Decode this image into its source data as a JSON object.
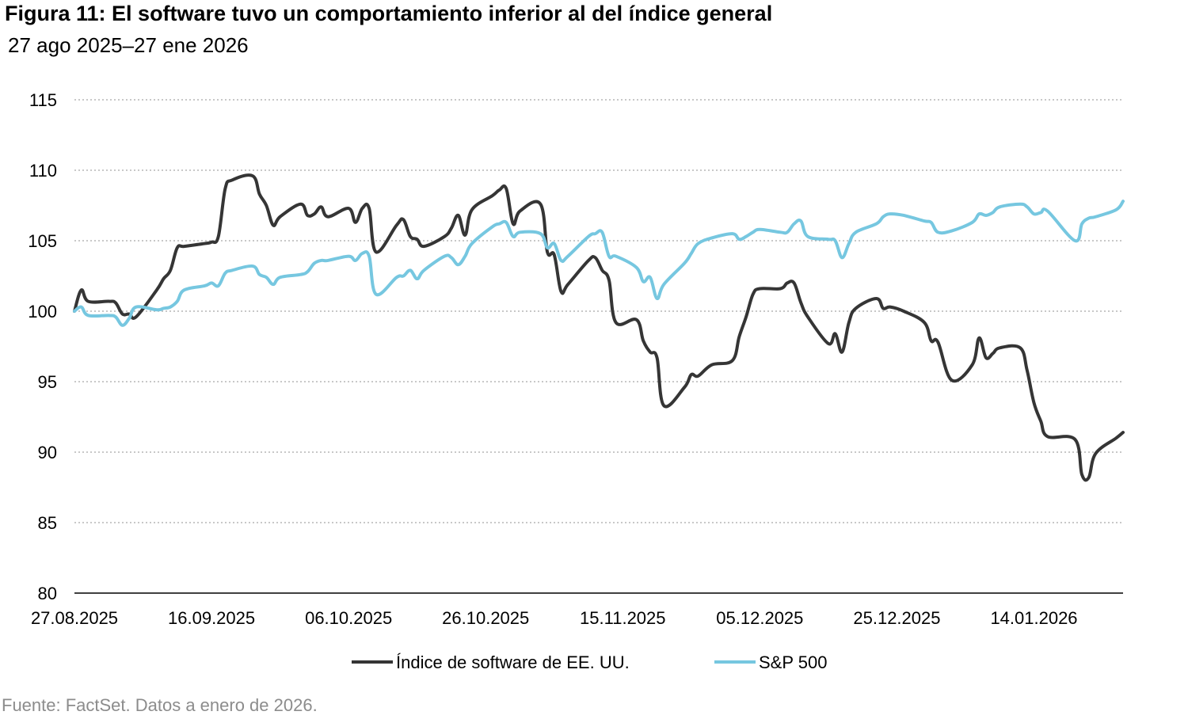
{
  "title": "Figura 11: El software tuvo un comportamiento inferior al del índice general",
  "subtitle": "27 ago 2025–27 ene 2026",
  "source": "Fuente: FactSet. Datos a enero de 2026.",
  "chart_data": {
    "type": "line",
    "title": "Figura 11: El software tuvo un comportamiento inferior al del índice general",
    "subtitle": "27 ago 2025–27 ene 2026",
    "xlabel": "",
    "ylabel": "",
    "xlim": [
      "2025-08-27",
      "2026-01-27"
    ],
    "ylim": [
      80,
      115
    ],
    "yticks": [
      80,
      85,
      90,
      95,
      100,
      105,
      110,
      115
    ],
    "y_tick_labels": [
      "80",
      "85",
      "90",
      "95",
      "100",
      "105",
      "110",
      "115"
    ],
    "x_tick_labels": [
      "27.08.2025",
      "16.09.2025",
      "06.10.2025",
      "26.10.2025",
      "15.11.2025",
      "05.12.2025",
      "25.12.2025",
      "14.01.2026"
    ],
    "x_tick_dates": [
      "2025-08-27",
      "2025-09-16",
      "2025-10-06",
      "2025-10-26",
      "2025-11-15",
      "2025-12-05",
      "2025-12-25",
      "2026-01-14"
    ],
    "grid": "horizontal dotted",
    "legend_position": "bottom-center",
    "series": [
      {
        "name": "Índice de software de EE. UU.",
        "color": "#353535",
        "points": [
          [
            "2025-08-27",
            100.0
          ],
          [
            "2025-08-28",
            101.5
          ],
          [
            "2025-08-29",
            100.7
          ],
          [
            "2025-09-01",
            100.7
          ],
          [
            "2025-09-02",
            100.6
          ],
          [
            "2025-09-03",
            99.8
          ],
          [
            "2025-09-04",
            99.8
          ],
          [
            "2025-09-05",
            99.6
          ],
          [
            "2025-09-08",
            101.5
          ],
          [
            "2025-09-09",
            102.3
          ],
          [
            "2025-09-10",
            102.9
          ],
          [
            "2025-09-11",
            104.5
          ],
          [
            "2025-09-12",
            104.6
          ],
          [
            "2025-09-15",
            104.8
          ],
          [
            "2025-09-16",
            104.9
          ],
          [
            "2025-09-17",
            105.3
          ],
          [
            "2025-09-18",
            108.7
          ],
          [
            "2025-09-19",
            109.3
          ],
          [
            "2025-09-22",
            109.6
          ],
          [
            "2025-09-23",
            108.3
          ],
          [
            "2025-09-24",
            107.5
          ],
          [
            "2025-09-25",
            106.1
          ],
          [
            "2025-09-26",
            106.7
          ],
          [
            "2025-09-29",
            107.6
          ],
          [
            "2025-09-30",
            106.8
          ],
          [
            "2025-10-01",
            106.9
          ],
          [
            "2025-10-02",
            107.4
          ],
          [
            "2025-10-03",
            106.7
          ],
          [
            "2025-10-06",
            107.3
          ],
          [
            "2025-10-07",
            106.3
          ],
          [
            "2025-10-08",
            107.3
          ],
          [
            "2025-10-09",
            107.3
          ],
          [
            "2025-10-10",
            104.2
          ],
          [
            "2025-10-13",
            106.1
          ],
          [
            "2025-10-14",
            106.5
          ],
          [
            "2025-10-15",
            105.3
          ],
          [
            "2025-10-16",
            105.1
          ],
          [
            "2025-10-17",
            104.6
          ],
          [
            "2025-10-20",
            105.3
          ],
          [
            "2025-10-21",
            105.9
          ],
          [
            "2025-10-22",
            106.8
          ],
          [
            "2025-10-23",
            105.4
          ],
          [
            "2025-10-24",
            107.2
          ],
          [
            "2025-10-27",
            108.2
          ],
          [
            "2025-10-28",
            108.6
          ],
          [
            "2025-10-29",
            108.7
          ],
          [
            "2025-10-30",
            106.2
          ],
          [
            "2025-10-31",
            107.1
          ],
          [
            "2025-11-03",
            107.6
          ],
          [
            "2025-11-04",
            104.2
          ],
          [
            "2025-11-05",
            104.0
          ],
          [
            "2025-11-06",
            101.4
          ],
          [
            "2025-11-07",
            101.9
          ],
          [
            "2025-11-10",
            103.6
          ],
          [
            "2025-11-11",
            103.8
          ],
          [
            "2025-11-12",
            102.9
          ],
          [
            "2025-11-13",
            102.2
          ],
          [
            "2025-11-14",
            99.2
          ],
          [
            "2025-11-17",
            99.4
          ],
          [
            "2025-11-18",
            97.9
          ],
          [
            "2025-11-19",
            97.1
          ],
          [
            "2025-11-20",
            96.7
          ],
          [
            "2025-11-21",
            93.3
          ],
          [
            "2025-11-24",
            94.6
          ],
          [
            "2025-11-25",
            95.5
          ],
          [
            "2025-11-26",
            95.4
          ],
          [
            "2025-11-28",
            96.2
          ],
          [
            "2025-12-01",
            96.5
          ],
          [
            "2025-12-02",
            98.2
          ],
          [
            "2025-12-03",
            99.6
          ],
          [
            "2025-12-04",
            101.2
          ],
          [
            "2025-12-05",
            101.6
          ],
          [
            "2025-12-08",
            101.6
          ],
          [
            "2025-12-09",
            102.0
          ],
          [
            "2025-12-10",
            102.0
          ],
          [
            "2025-12-11",
            100.6
          ],
          [
            "2025-12-12",
            99.6
          ],
          [
            "2025-12-15",
            97.7
          ],
          [
            "2025-12-16",
            98.4
          ],
          [
            "2025-12-17",
            97.1
          ],
          [
            "2025-12-18",
            99.2
          ],
          [
            "2025-12-19",
            100.2
          ],
          [
            "2025-12-22",
            100.9
          ],
          [
            "2025-12-23",
            100.2
          ],
          [
            "2025-12-24",
            100.3
          ],
          [
            "2025-12-26",
            100.0
          ],
          [
            "2025-12-29",
            99.2
          ],
          [
            "2025-12-30",
            97.9
          ],
          [
            "2025-12-31",
            97.8
          ],
          [
            "2026-01-02",
            95.1
          ],
          [
            "2026-01-05",
            96.2
          ],
          [
            "2026-01-06",
            98.1
          ],
          [
            "2026-01-07",
            96.7
          ],
          [
            "2026-01-08",
            97.0
          ],
          [
            "2026-01-09",
            97.4
          ],
          [
            "2026-01-12",
            97.4
          ],
          [
            "2026-01-13",
            95.8
          ],
          [
            "2026-01-14",
            93.5
          ],
          [
            "2026-01-15",
            92.2
          ],
          [
            "2026-01-16",
            91.1
          ],
          [
            "2026-01-20",
            90.9
          ],
          [
            "2026-01-21",
            88.4
          ],
          [
            "2026-01-22",
            88.2
          ],
          [
            "2026-01-23",
            89.9
          ],
          [
            "2026-01-26",
            91.0
          ],
          [
            "2026-01-27",
            91.4
          ]
        ]
      },
      {
        "name": "S&P 500",
        "color": "#76c7e0",
        "points": [
          [
            "2025-08-27",
            100.0
          ],
          [
            "2025-08-28",
            100.3
          ],
          [
            "2025-08-29",
            99.7
          ],
          [
            "2025-09-01",
            99.7
          ],
          [
            "2025-09-02",
            99.6
          ],
          [
            "2025-09-03",
            99.0
          ],
          [
            "2025-09-04",
            99.5
          ],
          [
            "2025-09-05",
            100.3
          ],
          [
            "2025-09-08",
            100.1
          ],
          [
            "2025-09-09",
            100.2
          ],
          [
            "2025-09-10",
            100.3
          ],
          [
            "2025-09-11",
            100.7
          ],
          [
            "2025-09-12",
            101.5
          ],
          [
            "2025-09-15",
            101.8
          ],
          [
            "2025-09-16",
            102.0
          ],
          [
            "2025-09-17",
            101.8
          ],
          [
            "2025-09-18",
            102.7
          ],
          [
            "2025-09-19",
            102.9
          ],
          [
            "2025-09-22",
            103.2
          ],
          [
            "2025-09-23",
            102.6
          ],
          [
            "2025-09-24",
            102.4
          ],
          [
            "2025-09-25",
            101.9
          ],
          [
            "2025-09-26",
            102.4
          ],
          [
            "2025-09-29",
            102.6
          ],
          [
            "2025-09-30",
            102.8
          ],
          [
            "2025-10-01",
            103.4
          ],
          [
            "2025-10-02",
            103.6
          ],
          [
            "2025-10-03",
            103.6
          ],
          [
            "2025-10-06",
            103.9
          ],
          [
            "2025-10-07",
            103.6
          ],
          [
            "2025-10-08",
            104.1
          ],
          [
            "2025-10-09",
            103.9
          ],
          [
            "2025-10-10",
            101.2
          ],
          [
            "2025-10-13",
            102.4
          ],
          [
            "2025-10-14",
            102.5
          ],
          [
            "2025-10-15",
            102.9
          ],
          [
            "2025-10-16",
            102.3
          ],
          [
            "2025-10-17",
            102.9
          ],
          [
            "2025-10-20",
            103.9
          ],
          [
            "2025-10-21",
            103.8
          ],
          [
            "2025-10-22",
            103.3
          ],
          [
            "2025-10-23",
            103.9
          ],
          [
            "2025-10-24",
            104.8
          ],
          [
            "2025-10-27",
            106.0
          ],
          [
            "2025-10-28",
            106.2
          ],
          [
            "2025-10-29",
            106.3
          ],
          [
            "2025-10-30",
            105.3
          ],
          [
            "2025-10-31",
            105.6
          ],
          [
            "2025-11-03",
            105.5
          ],
          [
            "2025-11-04",
            104.5
          ],
          [
            "2025-11-05",
            104.8
          ],
          [
            "2025-11-06",
            103.6
          ],
          [
            "2025-11-07",
            103.9
          ],
          [
            "2025-11-10",
            105.3
          ],
          [
            "2025-11-11",
            105.5
          ],
          [
            "2025-11-12",
            105.6
          ],
          [
            "2025-11-13",
            103.9
          ],
          [
            "2025-11-14",
            103.9
          ],
          [
            "2025-11-17",
            103.1
          ],
          [
            "2025-11-18",
            102.1
          ],
          [
            "2025-11-19",
            102.4
          ],
          [
            "2025-11-20",
            100.9
          ],
          [
            "2025-11-21",
            101.9
          ],
          [
            "2025-11-24",
            103.4
          ],
          [
            "2025-11-25",
            104.1
          ],
          [
            "2025-11-26",
            104.8
          ],
          [
            "2025-11-28",
            105.2
          ],
          [
            "2025-12-01",
            105.5
          ],
          [
            "2025-12-02",
            105.1
          ],
          [
            "2025-12-03",
            105.3
          ],
          [
            "2025-12-04",
            105.6
          ],
          [
            "2025-12-05",
            105.8
          ],
          [
            "2025-12-08",
            105.6
          ],
          [
            "2025-12-09",
            105.6
          ],
          [
            "2025-12-10",
            106.2
          ],
          [
            "2025-12-11",
            106.4
          ],
          [
            "2025-12-12",
            105.3
          ],
          [
            "2025-12-15",
            105.1
          ],
          [
            "2025-12-16",
            105.0
          ],
          [
            "2025-12-17",
            103.8
          ],
          [
            "2025-12-18",
            104.8
          ],
          [
            "2025-12-19",
            105.6
          ],
          [
            "2025-12-22",
            106.2
          ],
          [
            "2025-12-23",
            106.7
          ],
          [
            "2025-12-24",
            106.9
          ],
          [
            "2025-12-26",
            106.8
          ],
          [
            "2025-12-29",
            106.4
          ],
          [
            "2025-12-30",
            106.3
          ],
          [
            "2025-12-31",
            105.6
          ],
          [
            "2026-01-02",
            105.7
          ],
          [
            "2026-01-05",
            106.3
          ],
          [
            "2026-01-06",
            106.9
          ],
          [
            "2026-01-07",
            106.8
          ],
          [
            "2026-01-08",
            107.0
          ],
          [
            "2026-01-09",
            107.4
          ],
          [
            "2026-01-12",
            107.6
          ],
          [
            "2026-01-13",
            107.4
          ],
          [
            "2026-01-14",
            106.9
          ],
          [
            "2026-01-15",
            107.0
          ],
          [
            "2026-01-16",
            107.1
          ],
          [
            "2026-01-20",
            105.0
          ],
          [
            "2026-01-21",
            106.2
          ],
          [
            "2026-01-22",
            106.6
          ],
          [
            "2026-01-23",
            106.7
          ],
          [
            "2026-01-26",
            107.2
          ],
          [
            "2026-01-27",
            107.8
          ]
        ]
      }
    ]
  }
}
